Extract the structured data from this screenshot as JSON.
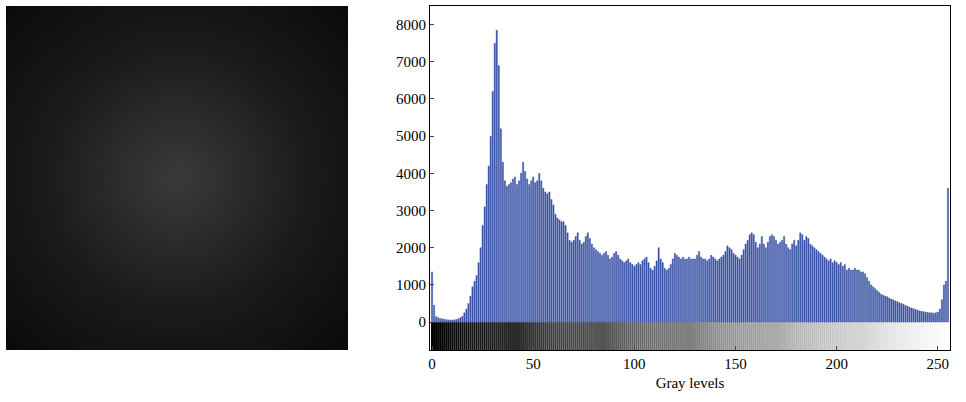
{
  "chart_data": {
    "type": "bar",
    "x_label": "Gray levels",
    "x": [
      0,
      1,
      2,
      3,
      4,
      5,
      6,
      7,
      8,
      9,
      10,
      11,
      12,
      13,
      14,
      15,
      16,
      17,
      18,
      19,
      20,
      21,
      22,
      23,
      24,
      25,
      26,
      27,
      28,
      29,
      30,
      31,
      32,
      33,
      34,
      35,
      36,
      37,
      38,
      39,
      40,
      41,
      42,
      43,
      44,
      45,
      46,
      47,
      48,
      49,
      50,
      51,
      52,
      53,
      54,
      55,
      56,
      57,
      58,
      59,
      60,
      61,
      62,
      63,
      64,
      65,
      66,
      67,
      68,
      69,
      70,
      71,
      72,
      73,
      74,
      75,
      76,
      77,
      78,
      79,
      80,
      81,
      82,
      83,
      84,
      85,
      86,
      87,
      88,
      89,
      90,
      91,
      92,
      93,
      94,
      95,
      96,
      97,
      98,
      99,
      100,
      101,
      102,
      103,
      104,
      105,
      106,
      107,
      108,
      109,
      110,
      111,
      112,
      113,
      114,
      115,
      116,
      117,
      118,
      119,
      120,
      121,
      122,
      123,
      124,
      125,
      126,
      127,
      128,
      129,
      130,
      131,
      132,
      133,
      134,
      135,
      136,
      137,
      138,
      139,
      140,
      141,
      142,
      143,
      144,
      145,
      146,
      147,
      148,
      149,
      150,
      151,
      152,
      153,
      154,
      155,
      156,
      157,
      158,
      159,
      160,
      161,
      162,
      163,
      164,
      165,
      166,
      167,
      168,
      169,
      170,
      171,
      172,
      173,
      174,
      175,
      176,
      177,
      178,
      179,
      180,
      181,
      182,
      183,
      184,
      185,
      186,
      187,
      188,
      189,
      190,
      191,
      192,
      193,
      194,
      195,
      196,
      197,
      198,
      199,
      200,
      201,
      202,
      203,
      204,
      205,
      206,
      207,
      208,
      209,
      210,
      211,
      212,
      213,
      214,
      215,
      216,
      217,
      218,
      219,
      220,
      221,
      222,
      223,
      224,
      225,
      226,
      227,
      228,
      229,
      230,
      231,
      232,
      233,
      234,
      235,
      236,
      237,
      238,
      239,
      240,
      241,
      242,
      243,
      244,
      245,
      246,
      247,
      248,
      249,
      250,
      251,
      252,
      253,
      254,
      255
    ],
    "values": [
      1350,
      450,
      150,
      120,
      100,
      90,
      80,
      70,
      60,
      60,
      60,
      60,
      70,
      90,
      120,
      160,
      250,
      350,
      500,
      700,
      950,
      1100,
      1250,
      1600,
      2000,
      2600,
      3100,
      3700,
      4200,
      5000,
      6200,
      7500,
      7850,
      6900,
      5200,
      4300,
      3800,
      3650,
      3700,
      3750,
      3850,
      3900,
      3700,
      3800,
      4000,
      4300,
      4050,
      3850,
      3700,
      3800,
      3900,
      3750,
      3800,
      4000,
      3800,
      3600,
      3500,
      3450,
      3500,
      3300,
      3150,
      2900,
      2800,
      2750,
      2700,
      2700,
      2600,
      2400,
      2200,
      2150,
      2200,
      2300,
      2400,
      2200,
      2100,
      2150,
      2300,
      2400,
      2250,
      2100,
      2000,
      1950,
      1900,
      1850,
      1800,
      1850,
      1900,
      1800,
      1700,
      1750,
      1850,
      1900,
      1800,
      1700,
      1650,
      1600,
      1650,
      1700,
      1600,
      1550,
      1500,
      1550,
      1600,
      1550,
      1650,
      1700,
      1750,
      1600,
      1450,
      1400,
      1500,
      1650,
      2000,
      1700,
      1600,
      1450,
      1400,
      1450,
      1550,
      1700,
      1850,
      1800,
      1750,
      1700,
      1750,
      1700,
      1700,
      1750,
      1700,
      1700,
      1700,
      1800,
      1900,
      1750,
      1700,
      1700,
      1650,
      1700,
      1800,
      1750,
      1700,
      1650,
      1700,
      1750,
      1800,
      1900,
      2050,
      2000,
      1950,
      1850,
      1800,
      1750,
      1700,
      1800,
      1950,
      2100,
      2200,
      2350,
      2400,
      2350,
      2150,
      2000,
      2100,
      2300,
      2100,
      2000,
      2150,
      2300,
      2350,
      2300,
      2200,
      2100,
      2150,
      2200,
      2300,
      2100,
      2000,
      1950,
      2100,
      2200,
      2050,
      2200,
      2400,
      2350,
      2200,
      2300,
      2250,
      2100,
      2050,
      2000,
      1950,
      1900,
      1850,
      1800,
      1750,
      1700,
      1650,
      1700,
      1600,
      1650,
      1600,
      1550,
      1600,
      1500,
      1550,
      1400,
      1450,
      1400,
      1400,
      1450,
      1400,
      1400,
      1350,
      1350,
      1300,
      1200,
      1100,
      1000,
      950,
      900,
      850,
      800,
      750,
      720,
      700,
      680,
      650,
      620,
      600,
      570,
      550,
      520,
      500,
      480,
      450,
      430,
      400,
      380,
      360,
      340,
      320,
      300,
      290,
      280,
      270,
      260,
      250,
      250,
      240,
      250,
      270,
      350,
      600,
      1000,
      1100,
      3600
    ],
    "color": "#3b54a6",
    "xlim": [
      -1,
      256
    ],
    "xticks": [
      0,
      50,
      100,
      150,
      200,
      250
    ],
    "ylim": [
      -750,
      8500
    ],
    "yticks": [
      0,
      1000,
      2000,
      3000,
      4000,
      5000,
      6000,
      7000,
      8000
    ],
    "grid": false
  }
}
